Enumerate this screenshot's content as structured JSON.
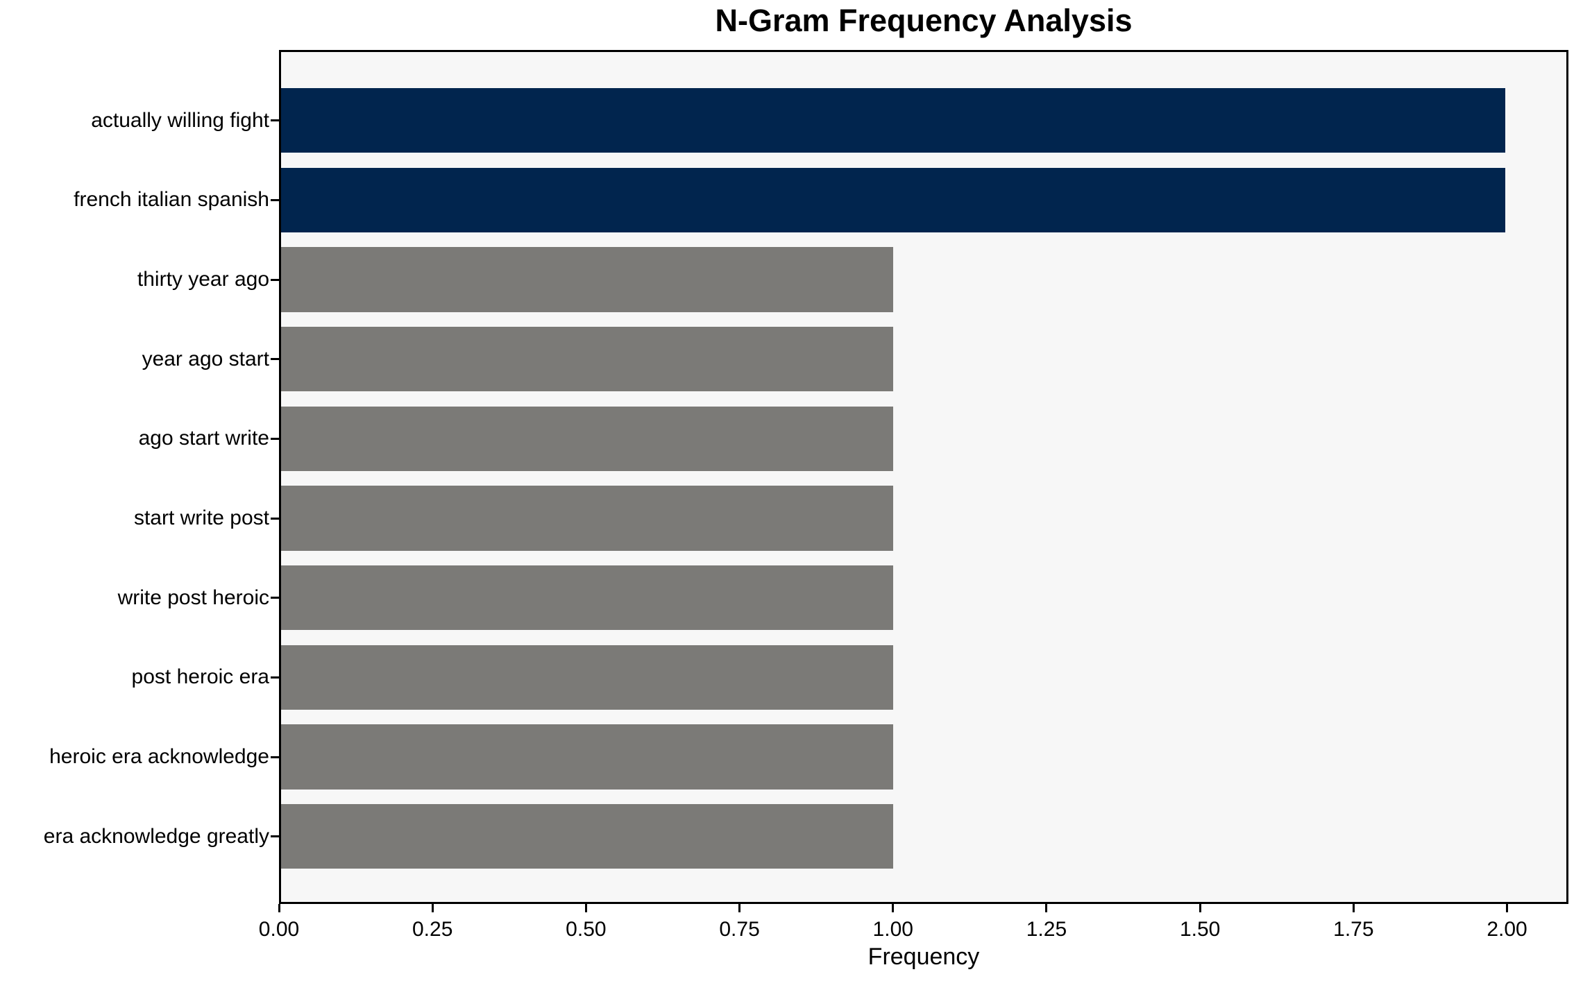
{
  "chart_data": {
    "type": "bar",
    "orientation": "horizontal",
    "title": "N-Gram Frequency Analysis",
    "xlabel": "Frequency",
    "ylabel": "",
    "categories": [
      "actually willing fight",
      "french italian spanish",
      "thirty year ago",
      "year ago start",
      "ago start write",
      "start write post",
      "write post heroic",
      "post heroic era",
      "heroic era acknowledge",
      "era acknowledge greatly"
    ],
    "values": [
      2,
      2,
      1,
      1,
      1,
      1,
      1,
      1,
      1,
      1
    ],
    "bar_colors": [
      "#01254e",
      "#01254e",
      "#7b7a77",
      "#7b7a77",
      "#7b7a77",
      "#7b7a77",
      "#7b7a77",
      "#7b7a77",
      "#7b7a77",
      "#7b7a77"
    ],
    "xlim": [
      0,
      2.1
    ],
    "xtick_values": [
      0,
      0.25,
      0.5,
      0.75,
      1.0,
      1.25,
      1.5,
      1.75,
      2.0
    ],
    "xtick_labels": [
      "0.00",
      "0.25",
      "0.50",
      "0.75",
      "1.00",
      "1.25",
      "1.50",
      "1.75",
      "2.00"
    ],
    "grid": false,
    "legend": null,
    "colors": {
      "highlight_bar": "#01254e",
      "regular_bar": "#7b7a77",
      "plot_background": "#f7f7f7",
      "figure_background": "#ffffff",
      "spine": "#000000",
      "text": "#000000"
    }
  }
}
